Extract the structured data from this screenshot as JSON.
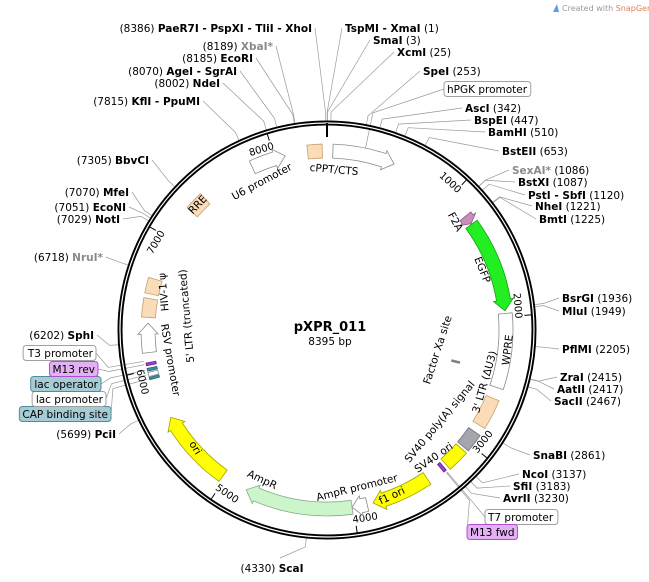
{
  "watermark": {
    "prefix": "Created with ",
    "brand": "SnapGene®"
  },
  "plasmid": {
    "name": "pXPR_011",
    "length_label": "8395 bp",
    "length_bp": 8395
  },
  "ticks": [
    {
      "bp": 1000,
      "label": "1000"
    },
    {
      "bp": 2000,
      "label": "2000"
    },
    {
      "bp": 3000,
      "label": "3000"
    },
    {
      "bp": 4000,
      "label": "4000"
    },
    {
      "bp": 5000,
      "label": "5000"
    },
    {
      "bp": 6000,
      "label": "6000"
    },
    {
      "bp": 7000,
      "label": "7000"
    },
    {
      "bp": 8000,
      "label": "8000"
    }
  ],
  "sites": [
    {
      "name": "TspMI - XmaI",
      "pos": "(1)",
      "bp": 1,
      "dim": false
    },
    {
      "name": "SmaI",
      "pos": "(3)",
      "bp": 3,
      "dim": false
    },
    {
      "name": "XcmI",
      "pos": "(25)",
      "bp": 25,
      "dim": false
    },
    {
      "name": "SpeI",
      "pos": "(253)",
      "bp": 253,
      "dim": false
    },
    {
      "name": "AscI",
      "pos": "(342)",
      "bp": 342,
      "dim": false
    },
    {
      "name": "BspEI",
      "pos": "(447)",
      "bp": 447,
      "dim": false
    },
    {
      "name": "BamHI",
      "pos": "(510)",
      "bp": 510,
      "dim": false
    },
    {
      "name": "BstEII",
      "pos": "(653)",
      "bp": 653,
      "dim": false
    },
    {
      "name": "SexAI*",
      "pos": "(1086)",
      "bp": 1086,
      "dim": true
    },
    {
      "name": "BstXI",
      "pos": "(1087)",
      "bp": 1087,
      "dim": false
    },
    {
      "name": "PstI - SbfI",
      "pos": "(1120)",
      "bp": 1120,
      "dim": false
    },
    {
      "name": "NheI",
      "pos": "(1221)",
      "bp": 1221,
      "dim": false
    },
    {
      "name": "BmtI",
      "pos": "(1225)",
      "bp": 1225,
      "dim": false
    },
    {
      "name": "BsrGI",
      "pos": "(1936)",
      "bp": 1936,
      "dim": false
    },
    {
      "name": "MluI",
      "pos": "(1949)",
      "bp": 1949,
      "dim": false
    },
    {
      "name": "PflMI",
      "pos": "(2205)",
      "bp": 2205,
      "dim": false
    },
    {
      "name": "ZraI",
      "pos": "(2415)",
      "bp": 2415,
      "dim": false
    },
    {
      "name": "AatII",
      "pos": "(2417)",
      "bp": 2417,
      "dim": false
    },
    {
      "name": "SacII",
      "pos": "(2467)",
      "bp": 2467,
      "dim": false
    },
    {
      "name": "SnaBI",
      "pos": "(2861)",
      "bp": 2861,
      "dim": false
    },
    {
      "name": "NcoI",
      "pos": "(3137)",
      "bp": 3137,
      "dim": false
    },
    {
      "name": "SfiI",
      "pos": "(3183)",
      "bp": 3183,
      "dim": false
    },
    {
      "name": "AvrII",
      "pos": "(3230)",
      "bp": 3230,
      "dim": false
    },
    {
      "name": "ScaI",
      "pos": "(4330)",
      "bp": 4330,
      "dim": false
    },
    {
      "name": "PciI",
      "pos": "(5699)",
      "bp": 5699,
      "dim": false
    },
    {
      "name": "SphI",
      "pos": "(6202)",
      "bp": 6202,
      "dim": false
    },
    {
      "name": "NruI*",
      "pos": "(6718)",
      "bp": 6718,
      "dim": true
    },
    {
      "name": "NotI",
      "pos": "(7029)",
      "bp": 7029,
      "dim": false
    },
    {
      "name": "EcoNI",
      "pos": "(7051)",
      "bp": 7051,
      "dim": false
    },
    {
      "name": "MfeI",
      "pos": "(7070)",
      "bp": 7070,
      "dim": false
    },
    {
      "name": "BbvCI",
      "pos": "(7305)",
      "bp": 7305,
      "dim": false
    },
    {
      "name": "KflI - PpuMI",
      "pos": "(7815)",
      "bp": 7815,
      "dim": false
    },
    {
      "name": "NdeI",
      "pos": "(8002)",
      "bp": 8002,
      "dim": false
    },
    {
      "name": "AgeI - SgrAI",
      "pos": "(8070)",
      "bp": 8070,
      "dim": false
    },
    {
      "name": "EcoRI",
      "pos": "(8185)",
      "bp": 8185,
      "dim": false
    },
    {
      "name": "XbaI*",
      "pos": "(8189)",
      "bp": 8189,
      "dim": true
    },
    {
      "name": "PaeR7I - PspXI - TliI - XhoI",
      "pos": "(8386)",
      "bp": 8386,
      "dim": false
    }
  ],
  "features": [
    {
      "name": "hPGK promoter",
      "start": 44,
      "end": 513,
      "shape": "arrow",
      "fill": "#ffffff",
      "stroke": "#8a8a8a",
      "label_style": "boxed-plain"
    },
    {
      "name": "F2A",
      "start": 1180,
      "end": 1250,
      "shape": "arrow",
      "fill": "#c890b8",
      "stroke": "#8a5a80",
      "label_style": "inside"
    },
    {
      "name": "EGFP",
      "start": 1255,
      "end": 1955,
      "shape": "arrow",
      "fill": "#22ee22",
      "stroke": "#14a014",
      "label_style": "inside"
    },
    {
      "name": "WPRE",
      "start": 1975,
      "end": 2535,
      "shape": "box",
      "fill": "#ffffff",
      "stroke": "#8a8a8a",
      "label_style": "inside"
    },
    {
      "name": "Factor Xa site",
      "start": 2420,
      "end": 2432,
      "shape": "site",
      "fill": "#808080",
      "stroke": "#606060",
      "label_style": "inside"
    },
    {
      "name": "3' LTR (ΔU3)",
      "start": 2620,
      "end": 2845,
      "shape": "box",
      "fill": "#fbdcb8",
      "stroke": "#c8a070",
      "label_style": "inside"
    },
    {
      "name": "SV40 poly(A) signal",
      "start": 2905,
      "end": 3045,
      "shape": "box",
      "fill": "#a4a6ae",
      "stroke": "#6e7078",
      "label_style": "inside"
    },
    {
      "name": "SV40 ori",
      "start": 3065,
      "end": 3230,
      "shape": "box",
      "fill": "#ffff00",
      "stroke": "#a0a000",
      "label_style": "inside"
    },
    {
      "name": "T7 promoter",
      "start": 3250,
      "end": 3268,
      "shape": "none",
      "fill": "#ffffff",
      "stroke": "#8a8a8a",
      "label_style": "boxed-plain"
    },
    {
      "name": "M13 fwd",
      "start": 3255,
      "end": 3278,
      "shape": "box",
      "fill": "#9a40d0",
      "stroke": "#6a2090",
      "label_style": "boxed-purple"
    },
    {
      "name": "f1 ori",
      "start": 3405,
      "end": 3850,
      "shape": "arrow",
      "fill": "#ffff00",
      "stroke": "#a0a000",
      "label_style": "inside"
    },
    {
      "name": "AmpR promoter",
      "start": 3895,
      "end": 4010,
      "shape": "arrow",
      "fill": "#ffffff",
      "stroke": "#8a8a8a",
      "label_style": "inside"
    },
    {
      "name": "AmpR",
      "start": 4010,
      "end": 4823,
      "shape": "arrow",
      "fill": "#ccf5cc",
      "stroke": "#88aa88",
      "label_style": "inside"
    },
    {
      "name": "ori",
      "start": 5025,
      "end": 5615,
      "shape": "arrow",
      "fill": "#ffff00",
      "stroke": "#a0a000",
      "label_style": "inside"
    },
    {
      "name": "CAP binding site",
      "start": 5930,
      "end": 5948,
      "shape": "box",
      "fill": "#3a8aa0",
      "stroke": "#2a6a80",
      "label_style": "boxed-teal"
    },
    {
      "name": "lac promoter",
      "start": 5955,
      "end": 5985,
      "shape": "box",
      "fill": "#ffffff",
      "stroke": "#8a8a8a",
      "label_style": "boxed-plain"
    },
    {
      "name": "lac operator",
      "start": 5995,
      "end": 6015,
      "shape": "box",
      "fill": "#3a8aa0",
      "stroke": "#2a6a80",
      "label_style": "boxed-teal"
    },
    {
      "name": "M13 rev",
      "start": 6035,
      "end": 6055,
      "shape": "box",
      "fill": "#9a40d0",
      "stroke": "#6a2090",
      "label_style": "boxed-purple"
    },
    {
      "name": "T3 promoter",
      "start": 6062,
      "end": 6078,
      "shape": "none",
      "fill": "#ffffff",
      "stroke": "#8a8a8a",
      "label_style": "boxed-plain"
    },
    {
      "name": "RSV promoter",
      "start": 6128,
      "end": 6348,
      "shape": "arrow",
      "fill": "#ffffff",
      "stroke": "#8a8a8a",
      "label_style": "inside"
    },
    {
      "name": "5' LTR (truncated)",
      "start": 6390,
      "end": 6530,
      "shape": "box",
      "fill": "#fbdcb8",
      "stroke": "#c8a070",
      "label_style": "inside"
    },
    {
      "name": "HIV-1 ψ",
      "start": 6565,
      "end": 6680,
      "shape": "box",
      "fill": "#fbdcb8",
      "stroke": "#c8a070",
      "label_style": "inside"
    },
    {
      "name": "RRE",
      "start": 7255,
      "end": 7395,
      "shape": "box",
      "fill": "#fbdcb8",
      "stroke": "#c8a070",
      "label_style": "inside"
    },
    {
      "name": "U6 promoter",
      "start": 7820,
      "end": 8080,
      "shape": "arrow",
      "fill": "#ffffff",
      "stroke": "#8a8a8a",
      "label_style": "inside"
    },
    {
      "name": "cPPT/CTS",
      "start": 8250,
      "end": 8360,
      "shape": "box",
      "fill": "#fbdcb8",
      "stroke": "#c8a070",
      "label_style": "inside"
    }
  ],
  "label_box_colors": {
    "boxed-plain": {
      "fill": "#ffffff",
      "stroke": "#a0a0a0"
    },
    "boxed-purple": {
      "fill": "#e4b0f4",
      "stroke": "#b050d0"
    },
    "boxed-teal": {
      "fill": "#a6cbd4",
      "stroke": "#4d8c9c"
    }
  }
}
